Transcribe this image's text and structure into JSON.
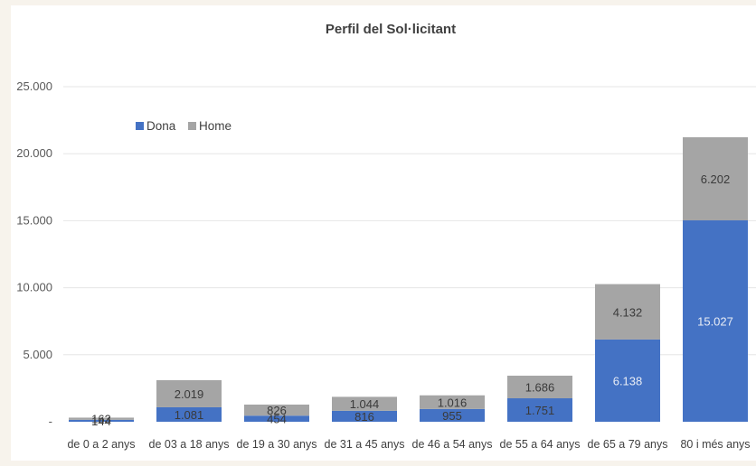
{
  "chart_data": {
    "type": "bar",
    "stacked": true,
    "title": "Perfil del Sol·licitant",
    "xlabel": "",
    "ylabel": "",
    "categories": [
      "de 0 a 2 anys",
      "de 03 a 18 anys",
      "de 19 a 30 anys",
      "de 31 a 45 anys",
      "de 46 a 54 anys",
      "de 55 a 64 anys",
      "de 65 a 79 anys",
      "80 i més anys"
    ],
    "series": [
      {
        "name": "Dona",
        "color": "#4472c4",
        "values": [
          144,
          1081,
          454,
          816,
          955,
          1751,
          6138,
          15027
        ],
        "labels": [
          "144",
          "1.081",
          "454",
          "816",
          "955",
          "1.751",
          "6.138",
          "15.027"
        ]
      },
      {
        "name": "Home",
        "color": "#a5a5a5",
        "values": [
          163,
          2019,
          826,
          1044,
          1016,
          1686,
          4132,
          6202
        ],
        "labels": [
          "163",
          "2.019",
          "826",
          "1.044",
          "1.016",
          "1.686",
          "4.132",
          "6.202"
        ]
      }
    ],
    "yticks": [
      0,
      5000,
      10000,
      15000,
      20000,
      25000
    ],
    "ytick_labels": [
      "-",
      "5.000",
      "10.000",
      "15.000",
      "20.000",
      "25.000"
    ],
    "ylim": [
      0,
      25000
    ],
    "grid": true,
    "legend_position": "top-left"
  }
}
